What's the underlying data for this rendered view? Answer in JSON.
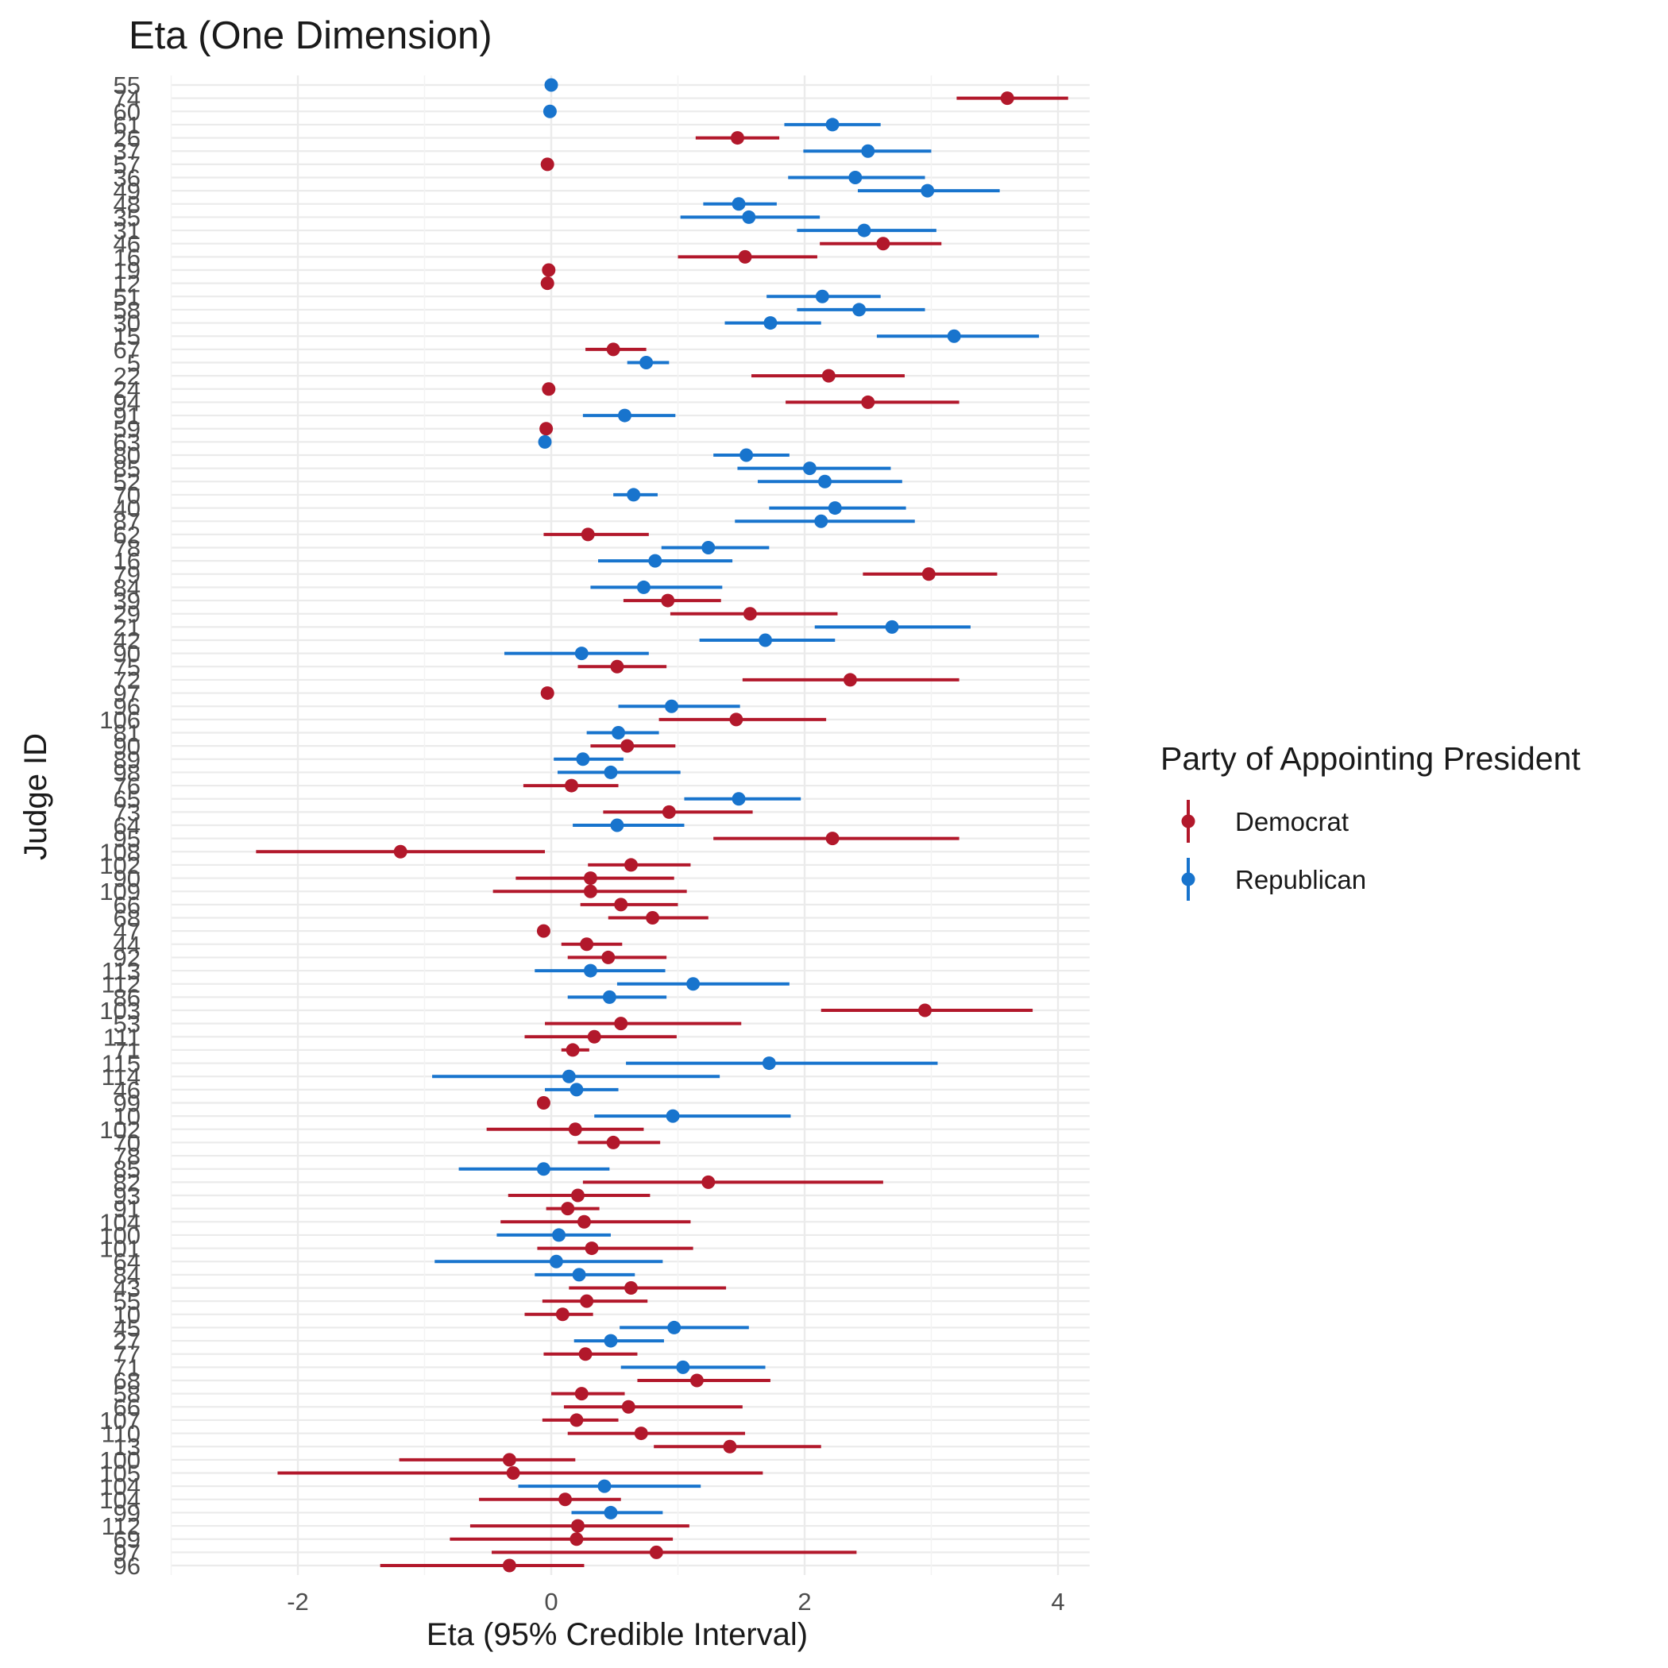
{
  "chart_data": {
    "type": "scatter",
    "title": "Eta (One Dimension)",
    "xlabel": "Eta (95% Credible Interval)",
    "ylabel": "Judge ID",
    "xlim": [
      -3.0,
      4.25
    ],
    "x_ticks": [
      -2,
      0,
      2,
      4
    ],
    "grid": true,
    "legend": {
      "title": "Party of Appointing President",
      "position": "right",
      "items": [
        {
          "name": "Democrat",
          "color": "#B2182B"
        },
        {
          "name": "Republican",
          "color": "#1874CD"
        }
      ]
    },
    "colors": {
      "Democrat": "#B2182B",
      "Republican": "#1874CD"
    },
    "points": [
      {
        "id": "55",
        "party": "Republican",
        "est": 0.0,
        "lo": 0.0,
        "hi": 0.0
      },
      {
        "id": "74",
        "party": "Democrat",
        "est": 3.6,
        "lo": 3.2,
        "hi": 4.08
      },
      {
        "id": "60",
        "party": "Republican",
        "est": -0.01,
        "lo": -0.01,
        "hi": -0.01
      },
      {
        "id": "61",
        "party": "Republican",
        "est": 2.22,
        "lo": 1.84,
        "hi": 2.6
      },
      {
        "id": "26",
        "party": "Democrat",
        "est": 1.47,
        "lo": 1.14,
        "hi": 1.8
      },
      {
        "id": "37",
        "party": "Republican",
        "est": 2.5,
        "lo": 1.99,
        "hi": 3.0
      },
      {
        "id": "57",
        "party": "Democrat",
        "est": -0.03,
        "lo": -0.03,
        "hi": -0.03
      },
      {
        "id": "36",
        "party": "Republican",
        "est": 2.4,
        "lo": 1.87,
        "hi": 2.95
      },
      {
        "id": "49",
        "party": "Republican",
        "est": 2.97,
        "lo": 2.42,
        "hi": 3.54
      },
      {
        "id": "48",
        "party": "Republican",
        "est": 1.48,
        "lo": 1.2,
        "hi": 1.78
      },
      {
        "id": "35",
        "party": "Republican",
        "est": 1.56,
        "lo": 1.02,
        "hi": 2.12
      },
      {
        "id": "31",
        "party": "Republican",
        "est": 2.47,
        "lo": 1.94,
        "hi": 3.04
      },
      {
        "id": "46",
        "party": "Democrat",
        "est": 2.62,
        "lo": 2.12,
        "hi": 3.08
      },
      {
        "id": "16",
        "party": "Democrat",
        "est": 1.53,
        "lo": 1.0,
        "hi": 2.1
      },
      {
        "id": "19",
        "party": "Democrat",
        "est": -0.02,
        "lo": -0.02,
        "hi": -0.02
      },
      {
        "id": "12",
        "party": "Democrat",
        "est": -0.03,
        "lo": -0.03,
        "hi": -0.03
      },
      {
        "id": "51",
        "party": "Republican",
        "est": 2.14,
        "lo": 1.7,
        "hi": 2.6
      },
      {
        "id": "58",
        "party": "Republican",
        "est": 2.43,
        "lo": 1.94,
        "hi": 2.95
      },
      {
        "id": "30",
        "party": "Republican",
        "est": 1.73,
        "lo": 1.37,
        "hi": 2.13
      },
      {
        "id": "15",
        "party": "Republican",
        "est": 3.18,
        "lo": 2.57,
        "hi": 3.85
      },
      {
        "id": "67",
        "party": "Democrat",
        "est": 0.49,
        "lo": 0.27,
        "hi": 0.75
      },
      {
        "id": "5",
        "party": "Republican",
        "est": 0.75,
        "lo": 0.6,
        "hi": 0.93
      },
      {
        "id": "22",
        "party": "Democrat",
        "est": 2.19,
        "lo": 1.58,
        "hi": 2.79
      },
      {
        "id": "24",
        "party": "Democrat",
        "est": -0.02,
        "lo": -0.02,
        "hi": -0.02
      },
      {
        "id": "94",
        "party": "Democrat",
        "est": 2.5,
        "lo": 1.85,
        "hi": 3.22
      },
      {
        "id": "91",
        "party": "Republican",
        "est": 0.58,
        "lo": 0.25,
        "hi": 0.98
      },
      {
        "id": "59",
        "party": "Democrat",
        "est": -0.04,
        "lo": -0.04,
        "hi": -0.04
      },
      {
        "id": "63",
        "party": "Republican",
        "est": -0.05,
        "lo": -0.05,
        "hi": -0.05
      },
      {
        "id": "80",
        "party": "Republican",
        "est": 1.54,
        "lo": 1.28,
        "hi": 1.88
      },
      {
        "id": "85",
        "party": "Republican",
        "est": 2.04,
        "lo": 1.47,
        "hi": 2.68
      },
      {
        "id": "52",
        "party": "Republican",
        "est": 2.16,
        "lo": 1.63,
        "hi": 2.77
      },
      {
        "id": "70",
        "party": "Republican",
        "est": 0.65,
        "lo": 0.49,
        "hi": 0.84
      },
      {
        "id": "40",
        "party": "Republican",
        "est": 2.24,
        "lo": 1.72,
        "hi": 2.8
      },
      {
        "id": "87",
        "party": "Republican",
        "est": 2.13,
        "lo": 1.45,
        "hi": 2.87
      },
      {
        "id": "62",
        "party": "Democrat",
        "est": 0.29,
        "lo": -0.06,
        "hi": 0.77
      },
      {
        "id": "78",
        "party": "Republican",
        "est": 1.24,
        "lo": 0.87,
        "hi": 1.72
      },
      {
        "id": "16",
        "party": "Republican",
        "est": 0.82,
        "lo": 0.37,
        "hi": 1.43
      },
      {
        "id": "79",
        "party": "Democrat",
        "est": 2.98,
        "lo": 2.46,
        "hi": 3.52
      },
      {
        "id": "84",
        "party": "Republican",
        "est": 0.73,
        "lo": 0.31,
        "hi": 1.35
      },
      {
        "id": "39",
        "party": "Democrat",
        "est": 0.92,
        "lo": 0.57,
        "hi": 1.34
      },
      {
        "id": "29",
        "party": "Democrat",
        "est": 1.57,
        "lo": 0.94,
        "hi": 2.26
      },
      {
        "id": "21",
        "party": "Republican",
        "est": 2.69,
        "lo": 2.08,
        "hi": 3.31
      },
      {
        "id": "42",
        "party": "Republican",
        "est": 1.69,
        "lo": 1.17,
        "hi": 2.24
      },
      {
        "id": "90",
        "party": "Republican",
        "est": 0.24,
        "lo": -0.37,
        "hi": 0.77
      },
      {
        "id": "75",
        "party": "Democrat",
        "est": 0.52,
        "lo": 0.21,
        "hi": 0.91
      },
      {
        "id": "72",
        "party": "Democrat",
        "est": 2.36,
        "lo": 1.51,
        "hi": 3.22
      },
      {
        "id": "97",
        "party": "Democrat",
        "est": -0.03,
        "lo": -0.03,
        "hi": -0.03
      },
      {
        "id": "96",
        "party": "Republican",
        "est": 0.95,
        "lo": 0.53,
        "hi": 1.49
      },
      {
        "id": "106",
        "party": "Democrat",
        "est": 1.46,
        "lo": 0.85,
        "hi": 2.17
      },
      {
        "id": "81",
        "party": "Republican",
        "est": 0.53,
        "lo": 0.28,
        "hi": 0.85
      },
      {
        "id": "90",
        "party": "Democrat",
        "est": 0.6,
        "lo": 0.31,
        "hi": 0.98
      },
      {
        "id": "89",
        "party": "Republican",
        "est": 0.25,
        "lo": 0.02,
        "hi": 0.57
      },
      {
        "id": "98",
        "party": "Republican",
        "est": 0.47,
        "lo": 0.05,
        "hi": 1.02
      },
      {
        "id": "76",
        "party": "Democrat",
        "est": 0.16,
        "lo": -0.22,
        "hi": 0.53
      },
      {
        "id": "65",
        "party": "Republican",
        "est": 1.48,
        "lo": 1.05,
        "hi": 1.97
      },
      {
        "id": "73",
        "party": "Democrat",
        "est": 0.93,
        "lo": 0.41,
        "hi": 1.59
      },
      {
        "id": "64",
        "party": "Republican",
        "est": 0.52,
        "lo": 0.17,
        "hi": 1.05
      },
      {
        "id": "95",
        "party": "Democrat",
        "est": 2.22,
        "lo": 1.28,
        "hi": 3.22
      },
      {
        "id": "108",
        "party": "Democrat",
        "est": -1.19,
        "lo": -2.33,
        "hi": -0.05
      },
      {
        "id": "102",
        "party": "Democrat",
        "est": 0.63,
        "lo": 0.29,
        "hi": 1.1
      },
      {
        "id": "90",
        "party": "Democrat",
        "est": 0.31,
        "lo": -0.28,
        "hi": 0.97
      },
      {
        "id": "109",
        "party": "Democrat",
        "est": 0.31,
        "lo": -0.46,
        "hi": 1.07
      },
      {
        "id": "66",
        "party": "Democrat",
        "est": 0.55,
        "lo": 0.23,
        "hi": 1.0
      },
      {
        "id": "68",
        "party": "Democrat",
        "est": 0.8,
        "lo": 0.45,
        "hi": 1.24
      },
      {
        "id": "47",
        "party": "Democrat",
        "est": -0.06,
        "lo": -0.06,
        "hi": -0.06
      },
      {
        "id": "44",
        "party": "Democrat",
        "est": 0.28,
        "lo": 0.08,
        "hi": 0.56
      },
      {
        "id": "92",
        "party": "Democrat",
        "est": 0.45,
        "lo": 0.13,
        "hi": 0.91
      },
      {
        "id": "113",
        "party": "Republican",
        "est": 0.31,
        "lo": -0.13,
        "hi": 0.9
      },
      {
        "id": "112",
        "party": "Republican",
        "est": 1.12,
        "lo": 0.52,
        "hi": 1.88
      },
      {
        "id": "86",
        "party": "Republican",
        "est": 0.46,
        "lo": 0.13,
        "hi": 0.91
      },
      {
        "id": "103",
        "party": "Democrat",
        "est": 2.95,
        "lo": 2.13,
        "hi": 3.8
      },
      {
        "id": "53",
        "party": "Democrat",
        "est": 0.55,
        "lo": -0.05,
        "hi": 1.5
      },
      {
        "id": "111",
        "party": "Democrat",
        "est": 0.34,
        "lo": -0.21,
        "hi": 0.99
      },
      {
        "id": "71",
        "party": "Democrat",
        "est": 0.17,
        "lo": 0.08,
        "hi": 0.3
      },
      {
        "id": "115",
        "party": "Republican",
        "est": 1.72,
        "lo": 0.59,
        "hi": 3.05
      },
      {
        "id": "114",
        "party": "Republican",
        "est": 0.14,
        "lo": -0.94,
        "hi": 1.33
      },
      {
        "id": "46",
        "party": "Republican",
        "est": 0.2,
        "lo": -0.05,
        "hi": 0.53
      },
      {
        "id": "99",
        "party": "Democrat",
        "est": -0.06,
        "lo": -0.06,
        "hi": -0.06
      },
      {
        "id": "10",
        "party": "Republican",
        "est": 0.96,
        "lo": 0.34,
        "hi": 1.89
      },
      {
        "id": "102",
        "party": "Democrat",
        "est": 0.19,
        "lo": -0.51,
        "hi": 0.73
      },
      {
        "id": "70",
        "party": "Democrat",
        "est": 0.49,
        "lo": 0.21,
        "hi": 0.86
      },
      {
        "id": "78",
        "party": "Democrat",
        "est": null,
        "lo": null,
        "hi": null
      },
      {
        "id": "85",
        "party": "Republican",
        "est": -0.06,
        "lo": -0.73,
        "hi": 0.46
      },
      {
        "id": "82",
        "party": "Democrat",
        "est": 1.24,
        "lo": 0.25,
        "hi": 2.62
      },
      {
        "id": "93",
        "party": "Democrat",
        "est": 0.21,
        "lo": -0.34,
        "hi": 0.78
      },
      {
        "id": "91",
        "party": "Democrat",
        "est": 0.13,
        "lo": -0.04,
        "hi": 0.38
      },
      {
        "id": "104",
        "party": "Democrat",
        "est": 0.26,
        "lo": -0.4,
        "hi": 1.1
      },
      {
        "id": "100",
        "party": "Republican",
        "est": 0.06,
        "lo": -0.43,
        "hi": 0.47
      },
      {
        "id": "101",
        "party": "Democrat",
        "est": 0.32,
        "lo": -0.11,
        "hi": 1.12
      },
      {
        "id": "64",
        "party": "Republican",
        "est": 0.04,
        "lo": -0.92,
        "hi": 0.88
      },
      {
        "id": "84",
        "party": "Republican",
        "est": 0.22,
        "lo": -0.13,
        "hi": 0.66
      },
      {
        "id": "43",
        "party": "Democrat",
        "est": 0.63,
        "lo": 0.14,
        "hi": 1.38
      },
      {
        "id": "55",
        "party": "Democrat",
        "est": 0.28,
        "lo": -0.07,
        "hi": 0.76
      },
      {
        "id": "10",
        "party": "Democrat",
        "est": 0.09,
        "lo": -0.21,
        "hi": 0.33
      },
      {
        "id": "45",
        "party": "Republican",
        "est": 0.97,
        "lo": 0.54,
        "hi": 1.56
      },
      {
        "id": "27",
        "party": "Republican",
        "est": 0.47,
        "lo": 0.18,
        "hi": 0.89
      },
      {
        "id": "77",
        "party": "Democrat",
        "est": 0.27,
        "lo": -0.06,
        "hi": 0.68
      },
      {
        "id": "71",
        "party": "Republican",
        "est": 1.04,
        "lo": 0.55,
        "hi": 1.69
      },
      {
        "id": "68",
        "party": "Democrat",
        "est": 1.15,
        "lo": 0.68,
        "hi": 1.73
      },
      {
        "id": "58",
        "party": "Democrat",
        "est": 0.24,
        "lo": 0.0,
        "hi": 0.58
      },
      {
        "id": "66",
        "party": "Democrat",
        "est": 0.61,
        "lo": 0.1,
        "hi": 1.51
      },
      {
        "id": "107",
        "party": "Democrat",
        "est": 0.2,
        "lo": -0.07,
        "hi": 0.53
      },
      {
        "id": "110",
        "party": "Democrat",
        "est": 0.71,
        "lo": 0.13,
        "hi": 1.53
      },
      {
        "id": "13",
        "party": "Democrat",
        "est": 1.41,
        "lo": 0.81,
        "hi": 2.13
      },
      {
        "id": "100",
        "party": "Democrat",
        "est": -0.33,
        "lo": -1.2,
        "hi": 0.19
      },
      {
        "id": "105",
        "party": "Democrat",
        "est": -0.3,
        "lo": -2.16,
        "hi": 1.67
      },
      {
        "id": "104",
        "party": "Republican",
        "est": 0.42,
        "lo": -0.26,
        "hi": 1.18
      },
      {
        "id": "104",
        "party": "Democrat",
        "est": 0.11,
        "lo": -0.57,
        "hi": 0.55
      },
      {
        "id": "99",
        "party": "Republican",
        "est": 0.47,
        "lo": 0.16,
        "hi": 0.88
      },
      {
        "id": "112",
        "party": "Democrat",
        "est": 0.21,
        "lo": -0.64,
        "hi": 1.09
      },
      {
        "id": "69",
        "party": "Democrat",
        "est": 0.2,
        "lo": -0.8,
        "hi": 0.96
      },
      {
        "id": "97",
        "party": "Democrat",
        "est": 0.83,
        "lo": -0.47,
        "hi": 2.41
      },
      {
        "id": "96",
        "party": "Democrat",
        "est": -0.33,
        "lo": -1.35,
        "hi": 0.26
      }
    ]
  }
}
